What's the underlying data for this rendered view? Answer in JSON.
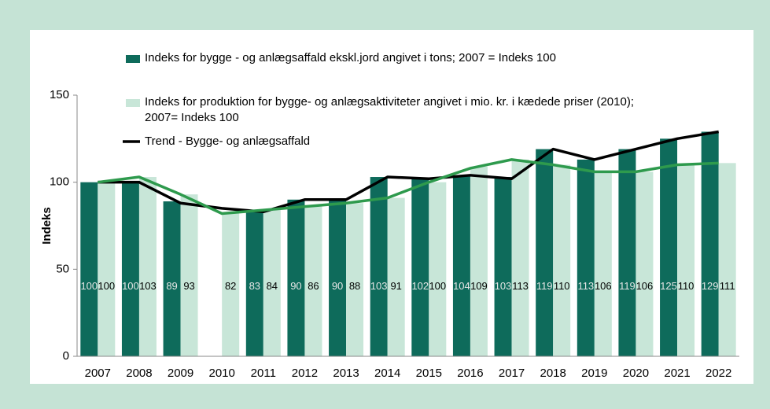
{
  "chart_data": {
    "type": "bar",
    "ylabel": "Indeks",
    "categories": [
      "2007",
      "2008",
      "2009",
      "2010",
      "2011",
      "2012",
      "2013",
      "2014",
      "2015",
      "2016",
      "2017",
      "2018",
      "2019",
      "2020",
      "2021",
      "2022"
    ],
    "series": [
      {
        "name": "Indeks for bygge - og anlægsaffald ekskl.jord angivet i tons; 2007 = Indeks 100",
        "type": "bar",
        "color": "#0e6b5b",
        "values": [
          100,
          100,
          89,
          null,
          83,
          90,
          90,
          103,
          102,
          104,
          103,
          119,
          113,
          119,
          125,
          129
        ]
      },
      {
        "name": "Indeks for produktion for bygge- og anlægsaktiviteter angivet i mio. kr.  i kædede priser (2010); 2007= Indeks 100",
        "type": "bar",
        "color": "#c8e6d8",
        "values": [
          100,
          103,
          93,
          82,
          84,
          86,
          88,
          91,
          100,
          109,
          113,
          110,
          106,
          106,
          110,
          111
        ]
      },
      {
        "name": "Trend - Bygge- og anlægsaffald",
        "type": "line",
        "color": "#000000",
        "values": [
          100,
          100,
          88,
          85,
          83,
          90,
          90,
          103,
          102,
          104,
          102,
          119,
          113,
          119,
          125,
          129
        ]
      },
      {
        "type": "line",
        "color": "#2e9a4d",
        "values": [
          100,
          103,
          93,
          82,
          84,
          86,
          88,
          91,
          100,
          108,
          113,
          110,
          106,
          106,
          110,
          111
        ]
      }
    ],
    "ylim": [
      0,
      150
    ],
    "yticks": [
      0,
      50,
      100,
      150
    ],
    "grid": false
  }
}
